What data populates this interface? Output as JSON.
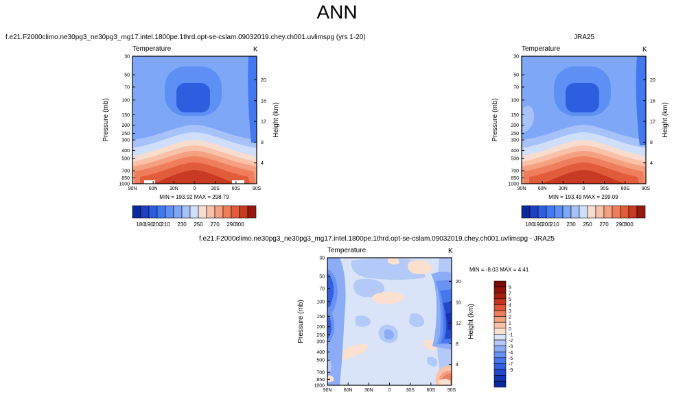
{
  "page_title": "ANN",
  "colors": {
    "warm_scale": [
      "#0a2a9c",
      "#1f3fc4",
      "#2e5ee0",
      "#4478ef",
      "#5e8ff5",
      "#7fa7f8",
      "#a7c2f9",
      "#cfdffa",
      "#f7ddd0",
      "#f9c1a8",
      "#f5a080",
      "#ef7f5c",
      "#e25c3c",
      "#c83a22",
      "#96190f"
    ],
    "diverging_scale": [
      "#0a2a9c",
      "#1733b5",
      "#2448cc",
      "#3260e0",
      "#4678ec",
      "#6893f2",
      "#8cadf5",
      "#b3c9f7",
      "#d9e4f8",
      "#fbe0d0",
      "#f8c3a8",
      "#f3a182",
      "#ec7d5d",
      "#dc5638",
      "#c43520",
      "#a5200f",
      "#8f1208",
      "#7a0a04"
    ]
  },
  "chart_data": [
    {
      "type": "heatmap",
      "title": "f.e21.F2000climo.ne30pg3_ne30pg3_mg17.intel.1800pe.1thrd.opt-se-cslam.09032019.chey.ch001.uvlimspg (yrs 1-20)",
      "left_label": "Temperature",
      "right_label": "K",
      "xlabel": "",
      "ylabel": "Pressure (mb)",
      "ylabel_right": "Height (km)",
      "x_ticks": [
        "90N",
        "60N",
        "30N",
        "0",
        "30S",
        "60S",
        "90S"
      ],
      "y_ticks": [
        30,
        50,
        70,
        100,
        150,
        200,
        250,
        300,
        400,
        500,
        700,
        850,
        1000
      ],
      "y_ticks_right": [
        4,
        8,
        12,
        16,
        20
      ],
      "stats": "MIN = 193.92   MAX = 298.79",
      "colorbar_labels": [
        "180",
        "190",
        "200",
        "210",
        "230",
        "250",
        "270",
        "290",
        "300"
      ],
      "levels": [
        170,
        180,
        190,
        200,
        205,
        210,
        220,
        230,
        240,
        250,
        260,
        270,
        280,
        290,
        300,
        310
      ]
    },
    {
      "type": "heatmap",
      "title": "JRA25",
      "left_label": "Temperature",
      "right_label": "K",
      "xlabel": "",
      "ylabel": "Pressure (mb)",
      "ylabel_right": "Height (km)",
      "x_ticks": [
        "90N",
        "60N",
        "30N",
        "0",
        "30S",
        "60S",
        "90S"
      ],
      "y_ticks": [
        30,
        50,
        70,
        100,
        150,
        200,
        250,
        300,
        400,
        500,
        700,
        850,
        1000
      ],
      "y_ticks_right": [
        4,
        8,
        12,
        16,
        20
      ],
      "stats": "MIN = 193.49   MAX = 299.09",
      "colorbar_labels": [
        "180",
        "190",
        "200",
        "210",
        "230",
        "250",
        "270",
        "290",
        "300"
      ],
      "levels": [
        170,
        180,
        190,
        200,
        205,
        210,
        220,
        230,
        240,
        250,
        260,
        270,
        280,
        290,
        300,
        310
      ]
    },
    {
      "type": "heatmap",
      "title": "f.e21.F2000climo.ne30pg3_ne30pg3_mg17.intel.1800pe.1thrd.opt-se-cslam.09032019.chey.ch001.uvlimspg - JRA25",
      "left_label": "Temperature",
      "right_label": "K",
      "xlabel": "",
      "ylabel": "Pressure (mb)",
      "ylabel_right": "Height (km)",
      "x_ticks": [
        "90N",
        "60N",
        "30N",
        "0",
        "30S",
        "60S",
        "90S"
      ],
      "y_ticks": [
        30,
        50,
        70,
        100,
        150,
        200,
        250,
        300,
        400,
        500,
        700,
        850,
        1000
      ],
      "y_ticks_right": [
        4,
        8,
        12,
        16,
        20
      ],
      "stats": "MIN =  -8.03   MAX =   4.41",
      "colorbar_labels": [
        "9",
        "7",
        "5",
        "4",
        "3",
        "2",
        "1",
        "0",
        "-1",
        "-2",
        "-3",
        "-4",
        "-5",
        "-7",
        "-9"
      ]
    }
  ]
}
